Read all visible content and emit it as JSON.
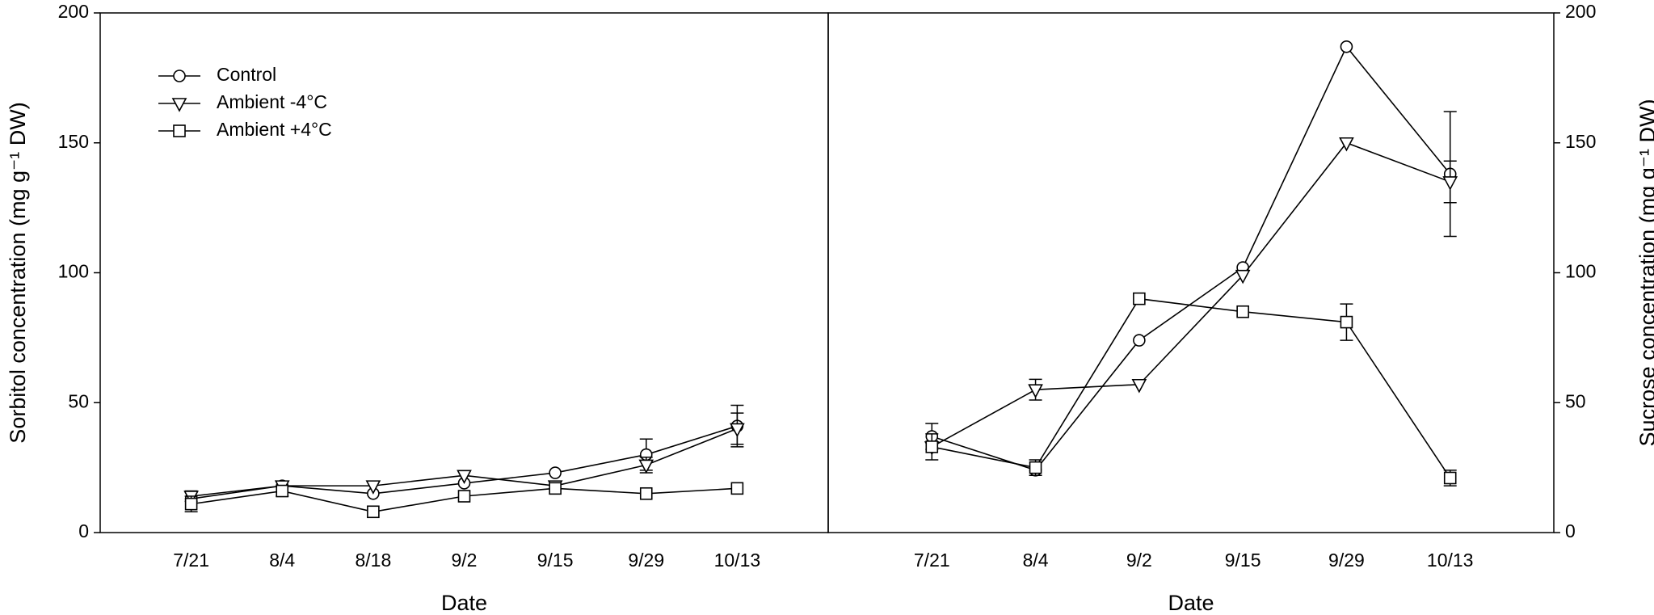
{
  "chart_data": [
    {
      "type": "line",
      "ylabel": "Sorbitol concentration (mg g⁻¹ DW)",
      "xlabel": "Date",
      "yaxis_side": "left",
      "legend": "upper left",
      "categories": [
        "7/21",
        "8/4",
        "8/18",
        "9/2",
        "9/15",
        "9/29",
        "10/13"
      ],
      "ylim": [
        0,
        200
      ],
      "yticks": [
        0,
        50,
        100,
        150,
        200
      ],
      "series": [
        {
          "name": "Control",
          "color": "#000000",
          "marker": "circle",
          "values": [
            13,
            18,
            15,
            19,
            23,
            30,
            41
          ],
          "errors": [
            null,
            null,
            null,
            null,
            null,
            6,
            8
          ]
        },
        {
          "name": "Ambient -4°C",
          "color": "#000000",
          "marker": "triangle-down",
          "values": [
            14,
            18,
            18,
            22,
            18,
            26,
            40
          ],
          "errors": [
            2,
            null,
            null,
            null,
            null,
            3,
            6
          ]
        },
        {
          "name": "Ambient +4°C",
          "color": "#000000",
          "marker": "square",
          "values": [
            11,
            16,
            8,
            14,
            17,
            15,
            17
          ],
          "errors": [
            3,
            2,
            null,
            null,
            null,
            null,
            null
          ]
        }
      ]
    },
    {
      "type": "line",
      "ylabel": "Sucrose concentration (mg g⁻¹ DW)",
      "xlabel": "Date",
      "yaxis_side": "right",
      "categories": [
        "7/21",
        "8/4",
        "9/2",
        "9/15",
        "9/29",
        "10/13"
      ],
      "ylim": [
        0,
        200
      ],
      "yticks": [
        0,
        50,
        100,
        150,
        200
      ],
      "series": [
        {
          "color": "#000000",
          "marker": "circle",
          "values": [
            37,
            24,
            74,
            102,
            187,
            138
          ],
          "errors": [
            5,
            null,
            null,
            null,
            null,
            24
          ]
        },
        {
          "color": "#000000",
          "marker": "triangle-down",
          "values": [
            33,
            55,
            57,
            99,
            150,
            135
          ],
          "errors": [
            5,
            4,
            null,
            null,
            null,
            8
          ]
        },
        {
          "color": "#000000",
          "marker": "square",
          "values": [
            33,
            25,
            90,
            85,
            81,
            21
          ],
          "errors": [
            null,
            3,
            null,
            null,
            7,
            3
          ]
        }
      ]
    }
  ]
}
